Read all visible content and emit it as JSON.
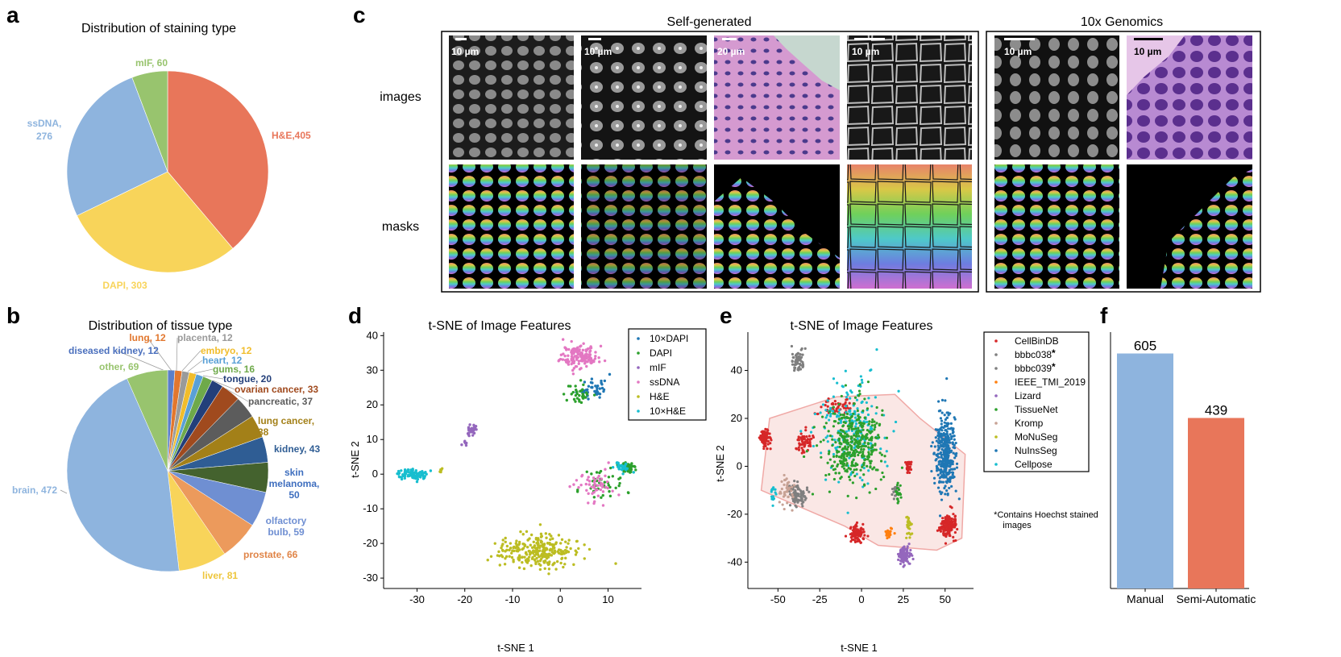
{
  "chart_data": [
    {
      "panel": "a",
      "type": "pie",
      "title": "Distribution of staining type",
      "slices": [
        {
          "label": "H&E,405",
          "value": 405,
          "color": "#e8765a"
        },
        {
          "label": "DAPI, 303",
          "value": 303,
          "color": "#f8d45a"
        },
        {
          "label": "ssDNA,\n276",
          "value": 276,
          "color": "#8eb4de"
        },
        {
          "label": "mIF, 60",
          "value": 60,
          "color": "#98c46e"
        }
      ]
    },
    {
      "panel": "b",
      "type": "pie",
      "title": "Distribution of tissue type",
      "slices": [
        {
          "label": "lung, 12",
          "value": 12,
          "color": "#5b7fc9",
          "label_color": "#e2772e"
        },
        {
          "label": "placenta, 12",
          "value": 12,
          "color": "#e2772e",
          "label_color": "#9a9a9a"
        },
        {
          "label": "diseased kidney, 12",
          "value": 12,
          "color": "#9a9a9a",
          "label_color": "#4a6fbd"
        },
        {
          "label": "embryo, 12",
          "value": 12,
          "color": "#f1bd2c",
          "label_color": "#f1bd2c"
        },
        {
          "label": "heart, 12",
          "value": 12,
          "color": "#5aa0d6",
          "label_color": "#5aa0d6"
        },
        {
          "label": "gums, 16",
          "value": 16,
          "color": "#6ea94a",
          "label_color": "#6ea94a"
        },
        {
          "label": "tongue, 20",
          "value": 20,
          "color": "#233f7a",
          "label_color": "#233f7a"
        },
        {
          "label": "ovarian cancer, 33",
          "value": 33,
          "color": "#a04a1e",
          "label_color": "#a04a1e"
        },
        {
          "label": "pancreatic, 37",
          "value": 37,
          "color": "#5c5c5c",
          "label_color": "#5c5c5c"
        },
        {
          "label": "lung cancer,\n38",
          "value": 38,
          "color": "#a38018",
          "label_color": "#a38018"
        },
        {
          "label": "kidney, 43",
          "value": 43,
          "color": "#2f5d94",
          "label_color": "#2f5d94"
        },
        {
          "label": "skin\nmelanoma,\n50",
          "value": 50,
          "color": "#44622e",
          "label_color": "#3f6fbf"
        },
        {
          "label": "olfactory\nbulb, 59",
          "value": 59,
          "color": "#6f8fd2",
          "label_color": "#6f8fd2"
        },
        {
          "label": "prostate, 66",
          "value": 66,
          "color": "#ec9a5c",
          "label_color": "#e08548"
        },
        {
          "label": "liver, 81",
          "value": 81,
          "color": "#f8d45a",
          "label_color": "#eec63c"
        },
        {
          "label": "brain, 472",
          "value": 472,
          "color": "#8eb4de",
          "label_color": "#8eb4de"
        },
        {
          "label": "other, 69",
          "value": 69,
          "color": "#98c46e",
          "label_color": "#98c46e"
        }
      ]
    },
    {
      "panel": "d",
      "type": "scatter",
      "title": "t-SNE of Image Features",
      "xlabel": "t-SNE 1",
      "ylabel": "t-SNE 2",
      "xlim": [
        -37,
        17
      ],
      "ylim": [
        -33,
        41
      ],
      "xticks": [
        -30,
        -20,
        -10,
        0,
        10
      ],
      "yticks": [
        -30,
        -20,
        -10,
        0,
        10,
        20,
        30,
        40
      ],
      "clusters": [
        {
          "series": "10×DAPI",
          "center": [
            7,
            25
          ],
          "spread": [
            2.4,
            3.2
          ],
          "n": 40
        },
        {
          "series": "DAPI",
          "center": [
            4,
            23
          ],
          "spread": [
            2.2,
            2.5
          ],
          "n": 35
        },
        {
          "series": "DAPI",
          "center": [
            9,
            -3
          ],
          "spread": [
            4,
            4
          ],
          "n": 40
        },
        {
          "series": "DAPI",
          "center": [
            14,
            2
          ],
          "spread": [
            1.2,
            1.2
          ],
          "n": 70
        },
        {
          "series": "mIF",
          "center": [
            -18.5,
            13
          ],
          "spread": [
            0.9,
            1.3
          ],
          "n": 30
        },
        {
          "series": "mIF",
          "center": [
            -20,
            9
          ],
          "spread": [
            0.4,
            0.5
          ],
          "n": 6
        },
        {
          "series": "ssDNA",
          "center": [
            4,
            34
          ],
          "spread": [
            3.2,
            2.8
          ],
          "n": 150
        },
        {
          "series": "ssDNA",
          "center": [
            7,
            -3
          ],
          "spread": [
            4,
            4
          ],
          "n": 50
        },
        {
          "series": "H&E",
          "center": [
            -5,
            -22
          ],
          "spread": [
            6,
            4
          ],
          "n": 280
        },
        {
          "series": "H&E",
          "center": [
            -25,
            1
          ],
          "spread": [
            0.3,
            0.6
          ],
          "n": 6
        },
        {
          "series": "10×H&E",
          "center": [
            -31,
            0
          ],
          "spread": [
            2.5,
            1.2
          ],
          "n": 90
        },
        {
          "series": "10×H&E",
          "center": [
            13,
            2
          ],
          "spread": [
            1.3,
            1.5
          ],
          "n": 30
        }
      ],
      "series": [
        {
          "name": "10×DAPI",
          "color": "#1f77b4"
        },
        {
          "name": "DAPI",
          "color": "#2ca02c"
        },
        {
          "name": "mIF",
          "color": "#9467bd"
        },
        {
          "name": "ssDNA",
          "color": "#e377c2"
        },
        {
          "name": "H&E",
          "color": "#bcbd22"
        },
        {
          "name": "10×H&E",
          "color": "#17becf"
        }
      ]
    },
    {
      "panel": "e",
      "type": "scatter",
      "title": "t-SNE of Image Features",
      "xlabel": "t-SNE 1",
      "ylabel": "t-SNE 2",
      "xlim": [
        -68,
        67
      ],
      "ylim": [
        -51,
        56
      ],
      "xticks": [
        -50,
        -25,
        0,
        25,
        50
      ],
      "yticks": [
        -40,
        -20,
        0,
        20,
        40
      ],
      "hull": [
        [
          -55,
          20
        ],
        [
          -15,
          29
        ],
        [
          20,
          30
        ],
        [
          35,
          20
        ],
        [
          62,
          5
        ],
        [
          60,
          -30
        ],
        [
          45,
          -35
        ],
        [
          10,
          -33
        ],
        [
          -10,
          -25
        ],
        [
          -60,
          -10
        ]
      ],
      "clusters": [
        {
          "series": "CellBinDB",
          "center": [
            -58,
            12
          ],
          "spread": [
            2.5,
            3
          ],
          "n": 80
        },
        {
          "series": "CellBinDB",
          "center": [
            -35,
            10
          ],
          "spread": [
            4,
            4
          ],
          "n": 60
        },
        {
          "series": "CellBinDB",
          "center": [
            -3,
            -28
          ],
          "spread": [
            4,
            3
          ],
          "n": 90
        },
        {
          "series": "CellBinDB",
          "center": [
            52,
            -25
          ],
          "spread": [
            4,
            4
          ],
          "n": 150
        },
        {
          "series": "CellBinDB",
          "center": [
            28,
            0
          ],
          "spread": [
            1.2,
            2
          ],
          "n": 25
        },
        {
          "series": "CellBinDB",
          "center": [
            -15,
            25
          ],
          "spread": [
            10,
            3
          ],
          "n": 50
        },
        {
          "series": "bbbc038",
          "center": [
            -38,
            -12
          ],
          "spread": [
            5,
            4
          ],
          "n": 100
        },
        {
          "series": "bbbc039",
          "center": [
            -38,
            44
          ],
          "spread": [
            3,
            4
          ],
          "n": 60
        },
        {
          "series": "bbbc039",
          "center": [
            20,
            -10
          ],
          "spread": [
            2,
            2
          ],
          "n": 20
        },
        {
          "series": "IEEE_TMI_2019",
          "center": [
            16,
            -28
          ],
          "spread": [
            2.5,
            2
          ],
          "n": 20
        },
        {
          "series": "Lizard",
          "center": [
            26,
            -37
          ],
          "spread": [
            3,
            3
          ],
          "n": 90
        },
        {
          "series": "TissueNet",
          "center": [
            22,
            -12
          ],
          "spread": [
            1.5,
            3
          ],
          "n": 20
        },
        {
          "series": "Kromp",
          "center": [
            -45,
            -10
          ],
          "spread": [
            3,
            5
          ],
          "n": 40
        },
        {
          "series": "MoNuSeg",
          "center": [
            28,
            -25
          ],
          "spread": [
            1.5,
            4
          ],
          "n": 25
        },
        {
          "series": "NuInsSeg",
          "center": [
            50,
            5
          ],
          "spread": [
            5,
            13
          ],
          "n": 350
        },
        {
          "series": "Cellpose",
          "center": [
            -5,
            15
          ],
          "spread": [
            18,
            18
          ],
          "n": 200
        },
        {
          "series": "Cellpose",
          "center": [
            -53,
            -12
          ],
          "spread": [
            1.5,
            3
          ],
          "n": 15
        },
        {
          "series": "TissueNet",
          "center": [
            -5,
            10
          ],
          "spread": [
            15,
            15
          ],
          "n": 380
        }
      ],
      "series": [
        {
          "name": "CellBinDB",
          "color": "#d62728"
        },
        {
          "name": "bbbc038",
          "color": "#7f7f7f",
          "star": true
        },
        {
          "name": "bbbc039",
          "color": "#7f7f7f",
          "star": true
        },
        {
          "name": "IEEE_TMI_2019",
          "color": "#ff7f0e"
        },
        {
          "name": "Lizard",
          "color": "#9467bd"
        },
        {
          "name": "TissueNet",
          "color": "#2ca02c"
        },
        {
          "name": "Kromp",
          "color": "#c7a295"
        },
        {
          "name": "MoNuSeg",
          "color": "#bcbd22"
        },
        {
          "name": "NuInsSeg",
          "color": "#1f77b4"
        },
        {
          "name": "Cellpose",
          "color": "#17becf"
        }
      ],
      "series_display": [
        "CellBinDB",
        "bbbc038",
        "bbbc039",
        "IEEE_TMI_2019",
        "Lizard",
        "TissueNet",
        "Kromp",
        "MoNuSeg",
        "NuInsSeg",
        "Cellpose"
      ],
      "footnote": [
        "*Contains Hoechst stained",
        "images"
      ]
    },
    {
      "panel": "f",
      "type": "bar",
      "categories": [
        "Manual",
        "Semi-Automatic"
      ],
      "values": [
        605,
        439
      ],
      "colors": [
        "#8eb4de",
        "#e8765a"
      ],
      "ylim": [
        0,
        660
      ]
    }
  ],
  "panel_c": {
    "section_self": "Self-generated",
    "section_10x": "10x Genomics",
    "row_images": "images",
    "row_masks": "masks",
    "scalebars": [
      "10 µm",
      "10 µm",
      "20 µm",
      "10 µm",
      "10 µm",
      "10 µm"
    ]
  },
  "letters": [
    "a",
    "b",
    "c",
    "d",
    "e",
    "f"
  ]
}
